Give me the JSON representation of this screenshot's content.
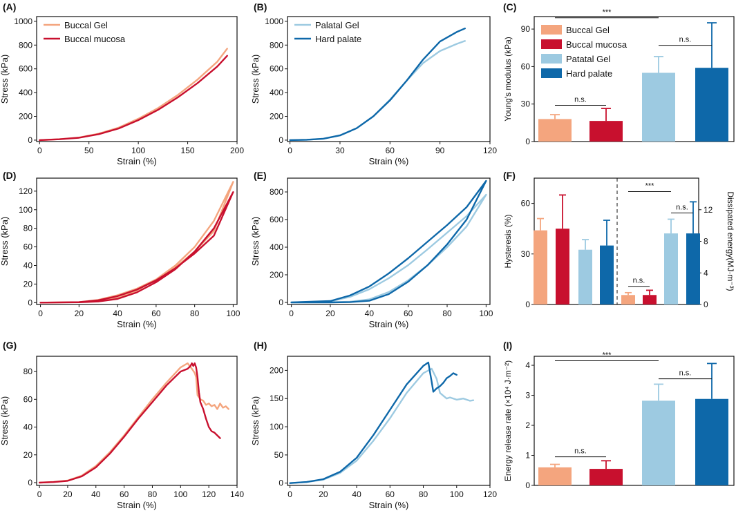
{
  "figure": {
    "background": "#ffffff",
    "axis_color": "#111111"
  },
  "colors": {
    "buccal_gel": "#F4A57E",
    "buccal_mucosa": "#C8102E",
    "palatal_gel": "#9DCAE1",
    "hard_palate": "#0E68A9"
  },
  "chart_data": [
    {
      "id": "A",
      "type": "line",
      "panel_label": "(A)",
      "xlabel": "Strain (%)",
      "ylabel": "Stress (kPa)",
      "xlim": [
        -3,
        200
      ],
      "ylim": [
        -12,
        1040
      ],
      "xticks": [
        0,
        50,
        100,
        150,
        200
      ],
      "yticks": [
        0,
        200,
        400,
        600,
        800,
        1000
      ],
      "legend": {
        "position": "top-left",
        "entries": [
          "Buccal Gel",
          "Buccal mucosa"
        ]
      },
      "series": [
        {
          "name": "Buccal Gel",
          "color": "#F4A57E",
          "x": [
            0,
            20,
            40,
            60,
            80,
            100,
            120,
            140,
            160,
            180,
            190
          ],
          "y": [
            0,
            8,
            22,
            55,
            105,
            180,
            270,
            380,
            510,
            660,
            770
          ]
        },
        {
          "name": "Buccal mucosa",
          "color": "#C8102E",
          "x": [
            0,
            20,
            40,
            60,
            80,
            100,
            120,
            140,
            160,
            180,
            190
          ],
          "y": [
            0,
            7,
            20,
            50,
            98,
            168,
            255,
            360,
            480,
            620,
            710
          ]
        }
      ]
    },
    {
      "id": "B",
      "type": "line",
      "panel_label": "(B)",
      "xlabel": "Strain (%)",
      "ylabel": "Stress (kPa)",
      "xlim": [
        -1.5,
        120
      ],
      "ylim": [
        -12,
        1040
      ],
      "xticks": [
        0,
        30,
        60,
        90,
        120
      ],
      "yticks": [
        0,
        200,
        400,
        600,
        800,
        1000
      ],
      "legend": {
        "position": "top-left",
        "entries": [
          "Palatal Gel",
          "Hard palate"
        ]
      },
      "series": [
        {
          "name": "Palatal Gel",
          "color": "#9DCAE1",
          "x": [
            0,
            10,
            20,
            30,
            40,
            50,
            60,
            70,
            80,
            90,
            100,
            105
          ],
          "y": [
            0,
            3,
            12,
            40,
            100,
            200,
            340,
            500,
            650,
            750,
            810,
            835
          ]
        },
        {
          "name": "Hard palate",
          "color": "#0E68A9",
          "x": [
            0,
            10,
            20,
            30,
            40,
            50,
            60,
            70,
            80,
            90,
            100,
            105
          ],
          "y": [
            0,
            3,
            12,
            40,
            100,
            200,
            335,
            500,
            680,
            830,
            910,
            940
          ]
        }
      ]
    },
    {
      "id": "C",
      "type": "bar",
      "panel_label": "(C)",
      "xlabel": "",
      "ylabel": "Young's modulus (kPa)",
      "ylim": [
        0,
        100
      ],
      "yticks": [
        0,
        30,
        60,
        90
      ],
      "legend": {
        "position": "top-left",
        "entries": [
          "Buccal Gel",
          "Buccal mucosa",
          "Patatal Gel",
          "Hard palate"
        ]
      },
      "categories": [
        "Buccal Gel",
        "Buccal mucosa",
        "Patatal Gel",
        "Hard palate"
      ],
      "values": [
        18,
        16.5,
        55,
        59
      ],
      "errors": [
        3.5,
        10,
        13,
        36
      ],
      "bar_colors": [
        "#F4A57E",
        "#C8102E",
        "#9DCAE1",
        "#0E68A9"
      ],
      "annotations": [
        {
          "text": "***",
          "from": 0,
          "to": 2,
          "y": 99
        },
        {
          "text": "n.s.",
          "from": 2,
          "to": 3,
          "y": 77
        },
        {
          "text": "n.s.",
          "from": 0,
          "to": 1,
          "y": 29
        }
      ]
    },
    {
      "id": "D",
      "type": "line",
      "panel_label": "(D)",
      "xlabel": "Strain (%)",
      "ylabel": "Stress (kPa)",
      "xlim": [
        -2,
        102
      ],
      "ylim": [
        -2,
        134
      ],
      "xticks": [
        0,
        20,
        40,
        60,
        80,
        100
      ],
      "yticks": [
        0,
        20,
        40,
        60,
        80,
        100,
        120
      ],
      "series": [
        {
          "name": "Buccal Gel",
          "color": "#F4A57E",
          "x": [
            0,
            20,
            30,
            40,
            50,
            60,
            70,
            80,
            90,
            100,
            90,
            80,
            70,
            60,
            50,
            40,
            30,
            20,
            0
          ],
          "y": [
            0,
            0.5,
            3,
            8,
            15,
            25,
            38,
            55,
            77,
            130,
            88,
            60,
            40,
            25,
            13,
            5,
            1.5,
            0.5,
            0
          ]
        },
        {
          "name": "Buccal mucosa",
          "color": "#C8102E",
          "x": [
            0,
            20,
            30,
            40,
            50,
            60,
            70,
            80,
            90,
            100,
            90,
            80,
            70,
            60,
            50,
            40,
            30,
            20,
            0
          ],
          "y": [
            0,
            0.5,
            2.5,
            7,
            14,
            24,
            37,
            53,
            72,
            119,
            80,
            55,
            36,
            22,
            11,
            4,
            1.2,
            0.4,
            0
          ]
        }
      ]
    },
    {
      "id": "E",
      "type": "line",
      "panel_label": "(E)",
      "xlabel": "Strain (%)",
      "ylabel": "Stress (kPa)",
      "xlim": [
        -2,
        102
      ],
      "ylim": [
        -15,
        900
      ],
      "xticks": [
        0,
        20,
        40,
        60,
        80,
        100
      ],
      "yticks": [
        0,
        200,
        400,
        600,
        800
      ],
      "series": [
        {
          "name": "Palatal Gel",
          "color": "#9DCAE1",
          "x": [
            0,
            20,
            30,
            40,
            50,
            60,
            70,
            80,
            90,
            100,
            90,
            80,
            70,
            60,
            50,
            40,
            30,
            20,
            0
          ],
          "y": [
            0,
            8,
            40,
            95,
            175,
            270,
            385,
            505,
            625,
            780,
            550,
            400,
            270,
            160,
            75,
            22,
            5,
            1,
            0
          ]
        },
        {
          "name": "Hard palate",
          "color": "#0E68A9",
          "x": [
            0,
            20,
            30,
            40,
            50,
            60,
            70,
            80,
            90,
            100,
            90,
            80,
            70,
            60,
            50,
            40,
            30,
            20,
            0
          ],
          "y": [
            0,
            10,
            50,
            115,
            210,
            320,
            440,
            560,
            690,
            880,
            600,
            420,
            270,
            150,
            60,
            12,
            2,
            0,
            0
          ]
        }
      ]
    },
    {
      "id": "F",
      "type": "bar",
      "panel_label": "(F)",
      "ylabel": "Hysteresis (%)",
      "ylabel_right": "Dissipated energy(MJ·m⁻³)",
      "ylim": [
        0,
        75
      ],
      "yticks": [
        0,
        30,
        60
      ],
      "ylim_right": [
        0,
        16
      ],
      "yticks_right": [
        0,
        4,
        8,
        12
      ],
      "categories": [
        "Buccal Gel",
        "Buccal mucosa",
        "Patatal Gel",
        "Hard palate"
      ],
      "bar_colors": [
        "#F4A57E",
        "#C8102E",
        "#9DCAE1",
        "#0E68A9"
      ],
      "hysteresis_values": [
        44,
        45,
        32.5,
        35
      ],
      "hysteresis_errors": [
        7,
        20,
        6,
        15
      ],
      "energy_values": [
        1.2,
        1.2,
        9,
        9
      ],
      "energy_errors": [
        0.3,
        0.6,
        1.8,
        4
      ],
      "annotations": [
        {
          "text": "***",
          "group": "right",
          "from": 0,
          "to": 2,
          "y": 14.3
        },
        {
          "text": "n.s.",
          "group": "right",
          "from": 2,
          "to": 3,
          "y": 11.6
        },
        {
          "text": "n.s.",
          "group": "right",
          "from": 0,
          "to": 1,
          "y": 2.3
        }
      ]
    },
    {
      "id": "G",
      "type": "line",
      "panel_label": "(G)",
      "xlabel": "Strain (%)",
      "ylabel": "Stress (kPa)",
      "xlim": [
        -2,
        140
      ],
      "ylim": [
        -2,
        91
      ],
      "xticks": [
        0,
        20,
        40,
        60,
        80,
        100,
        120,
        140
      ],
      "yticks": [
        0,
        20,
        40,
        60,
        80
      ],
      "series": [
        {
          "name": "Buccal Gel",
          "color": "#F4A57E",
          "x": [
            0,
            10,
            20,
            30,
            40,
            50,
            60,
            70,
            80,
            90,
            100,
            105,
            108,
            110,
            111,
            112,
            114,
            116,
            118,
            120,
            122,
            124,
            126,
            128,
            130,
            132,
            134
          ],
          "y": [
            0,
            0.5,
            1.5,
            5,
            12,
            22,
            34,
            47,
            60,
            72,
            83,
            86,
            82,
            79,
            76,
            63,
            60,
            59,
            56,
            57,
            55,
            56,
            53,
            57,
            54,
            55,
            53
          ]
        },
        {
          "name": "Buccal mucosa",
          "color": "#C8102E",
          "x": [
            0,
            10,
            20,
            30,
            40,
            50,
            60,
            70,
            80,
            90,
            100,
            105,
            107,
            108,
            109,
            110,
            111,
            112,
            113,
            114,
            116,
            118,
            120,
            122,
            124,
            126,
            128
          ],
          "y": [
            0,
            0.4,
            1.3,
            4.5,
            11,
            21,
            33,
            46,
            58,
            70,
            80,
            82,
            84,
            86,
            84,
            86,
            83,
            76,
            65,
            58,
            53,
            46,
            40,
            37,
            36,
            34,
            32
          ]
        }
      ]
    },
    {
      "id": "H",
      "type": "line",
      "panel_label": "(H)",
      "xlabel": "Strain (%)",
      "ylabel": "Stress (kPa)",
      "xlim": [
        -1.5,
        120
      ],
      "ylim": [
        -4,
        225
      ],
      "xticks": [
        0,
        20,
        40,
        60,
        80,
        100,
        120
      ],
      "yticks": [
        0,
        50,
        100,
        150,
        200
      ],
      "series": [
        {
          "name": "Palatal Gel",
          "color": "#9DCAE1",
          "x": [
            0,
            10,
            20,
            30,
            40,
            50,
            60,
            70,
            80,
            85,
            88,
            90,
            92,
            94,
            96,
            100,
            104,
            108,
            110
          ],
          "y": [
            0,
            2,
            6,
            18,
            40,
            75,
            115,
            160,
            195,
            203,
            185,
            160,
            155,
            150,
            152,
            148,
            150,
            146,
            147
          ]
        },
        {
          "name": "Hard palate",
          "color": "#0E68A9",
          "x": [
            0,
            10,
            20,
            30,
            40,
            50,
            60,
            70,
            80,
            83,
            85,
            86,
            88,
            90,
            92,
            94,
            96,
            98,
            100
          ],
          "y": [
            0,
            2,
            7,
            20,
            45,
            85,
            130,
            175,
            208,
            214,
            180,
            162,
            168,
            172,
            178,
            186,
            190,
            195,
            192
          ]
        }
      ]
    },
    {
      "id": "I",
      "type": "bar",
      "panel_label": "(I)",
      "xlabel": "",
      "ylabel": "Energy release rate (×10⁴ J·m⁻²)",
      "ylim": [
        0,
        4.3
      ],
      "yticks": [
        0,
        1,
        2,
        3,
        4
      ],
      "categories": [
        "Buccal Gel",
        "Buccal mucosa",
        "Patatal Gel",
        "Hard palate"
      ],
      "values": [
        0.6,
        0.55,
        2.82,
        2.88
      ],
      "errors": [
        0.1,
        0.27,
        0.55,
        1.18
      ],
      "bar_colors": [
        "#F4A57E",
        "#C8102E",
        "#9DCAE1",
        "#0E68A9"
      ],
      "annotations": [
        {
          "text": "***",
          "from": 0,
          "to": 2,
          "y": 4.15
        },
        {
          "text": "n.s.",
          "from": 2,
          "to": 3,
          "y": 3.55
        },
        {
          "text": "n.s.",
          "from": 0,
          "to": 1,
          "y": 0.95
        }
      ]
    }
  ]
}
